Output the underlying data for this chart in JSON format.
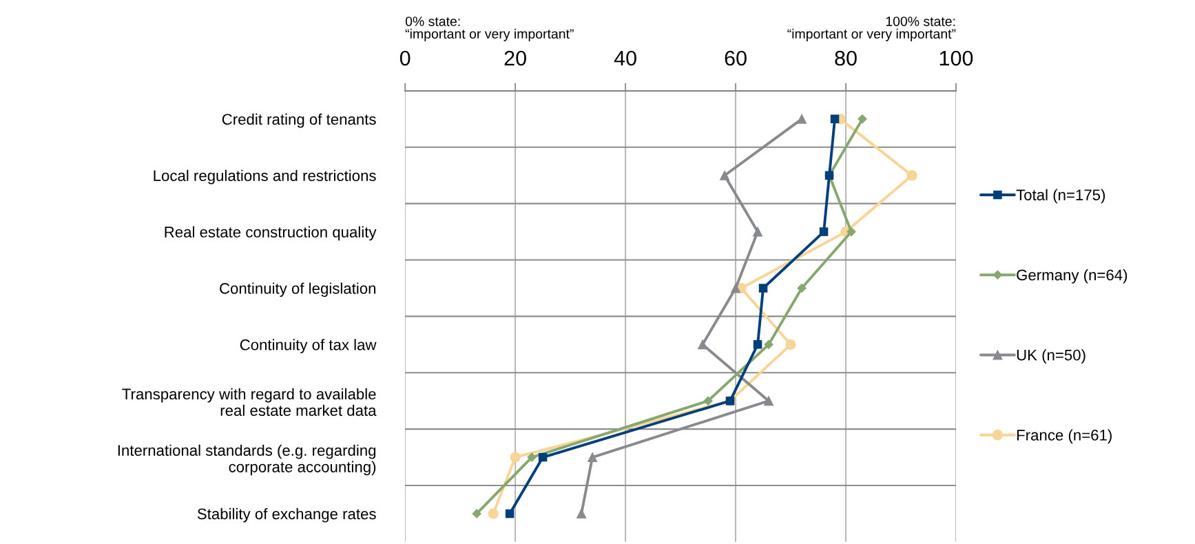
{
  "chart_data": {
    "type": "line",
    "orientation": "horizontal",
    "categories": [
      "Credit rating of tenants",
      "Local regulations and restrictions",
      "Real estate construction quality",
      "Continuity of legislation",
      "Continuity of tax law",
      "Transparency with regard to available\nreal estate market data",
      "International standards (e.g. regarding\ncorporate accounting)",
      "Stability of exchange rates"
    ],
    "series": [
      {
        "name": "Total (n=175)",
        "color": "#003f7a",
        "marker": "square",
        "values": [
          78,
          77,
          76,
          65,
          64,
          59,
          25,
          19
        ]
      },
      {
        "name": "Germany (n=64)",
        "color": "#86a86f",
        "marker": "diamond",
        "values": [
          83,
          77,
          81,
          72,
          66,
          55,
          23,
          13
        ]
      },
      {
        "name": "UK (n=50)",
        "color": "#878a8f",
        "marker": "triangle",
        "values": [
          72,
          58,
          64,
          60,
          54,
          66,
          34,
          32
        ]
      },
      {
        "name": "France (n=61)",
        "color": "#f8d596",
        "marker": "circle",
        "values": [
          79,
          92,
          80,
          61,
          70,
          59,
          20,
          16
        ]
      }
    ],
    "xlim": [
      0,
      100
    ],
    "xticks": [
      0,
      20,
      40,
      60,
      80,
      100
    ],
    "grid": true,
    "legend": "right",
    "line_style": "solid",
    "annotations": [
      "0% state:\n“important or very important”",
      "100% state:\n“important or very important”"
    ]
  }
}
